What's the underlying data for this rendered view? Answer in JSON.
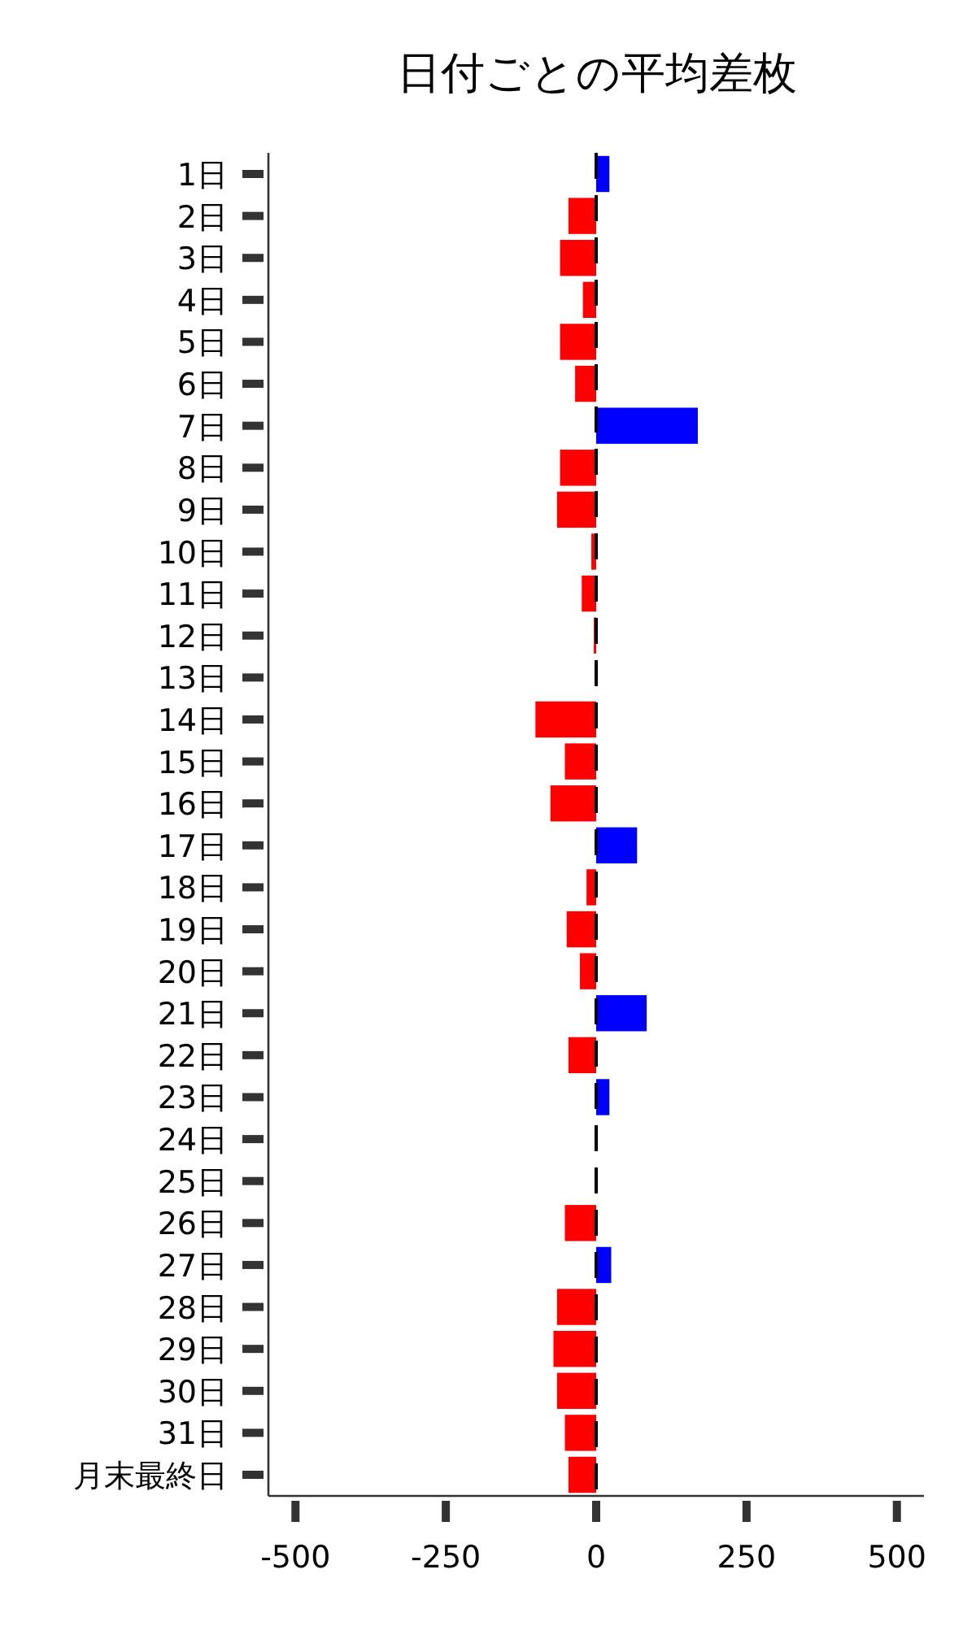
{
  "chart_data": {
    "type": "bar",
    "orientation": "horizontal",
    "title": "日付ごとの平均差枚",
    "categories": [
      "1日",
      "2日",
      "3日",
      "4日",
      "5日",
      "6日",
      "7日",
      "8日",
      "9日",
      "10日",
      "11日",
      "12日",
      "13日",
      "14日",
      "15日",
      "16日",
      "17日",
      "18日",
      "19日",
      "20日",
      "21日",
      "22日",
      "23日",
      "24日",
      "25日",
      "26日",
      "27日",
      "28日",
      "29日",
      "30日",
      "31日",
      "月末最終日"
    ],
    "values": [
      22,
      -46,
      -60,
      -22,
      -60,
      -35,
      169,
      -60,
      -65,
      -8,
      -24,
      -4,
      0,
      -101,
      -52,
      -76,
      68,
      -16,
      -49,
      -27,
      84,
      -46,
      22,
      0,
      0,
      -52,
      25,
      -65,
      -71,
      -65,
      -52,
      -46
    ],
    "colors": [
      "#0000ff",
      "#ff0000",
      "#ff0000",
      "#ff0000",
      "#ff0000",
      "#ff0000",
      "#0000ff",
      "#ff0000",
      "#ff0000",
      "#ff0000",
      "#ff0000",
      "#ff0000",
      "#ff0000",
      "#ff0000",
      "#ff0000",
      "#ff0000",
      "#0000ff",
      "#ff0000",
      "#ff0000",
      "#ff0000",
      "#0000ff",
      "#ff0000",
      "#0000ff",
      "#ff0000",
      "#ff0000",
      "#ff0000",
      "#0000ff",
      "#ff0000",
      "#ff0000",
      "#ff0000",
      "#ff0000",
      "#ff0000"
    ],
    "xlim": [
      -545,
      545
    ],
    "xticks": [
      -500,
      -250,
      0,
      250,
      500
    ],
    "ref_lines": [
      {
        "axis": "x",
        "value": 0,
        "color": "#000000",
        "line_style": "dashed"
      }
    ],
    "grid": false
  }
}
